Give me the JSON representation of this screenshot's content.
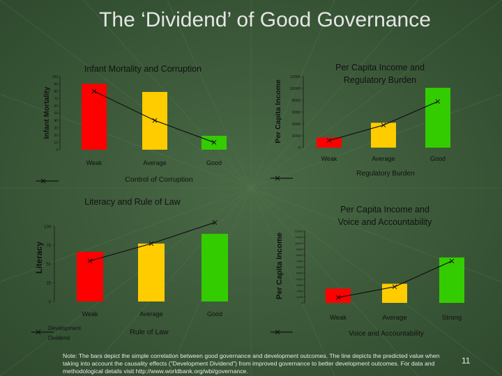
{
  "slide": {
    "title": "The ‘Dividend’ of Good Governance",
    "note": "Note: The bars depict the simple correlation between good governance and development outcomes.  The line depicts the predicted value when taking into account the causality effects (\"Development Dividend\") from improved governance to better development outcomes. For data and methodological details visit http://www.worldbank.org/wbi/governance.",
    "page_number": "11"
  },
  "colors": {
    "background": "#3f5a3c",
    "weak": "#ff0000",
    "average": "#ffcc00",
    "good": "#33cc00",
    "line": "#111111",
    "title": "#e6e6e6"
  },
  "chart_data": [
    {
      "id": "infant",
      "type": "bar",
      "title": "Infant Mortality and Corruption",
      "ylabel": "Infant Mortality",
      "xlabel": "Control of Corruption",
      "ylim": [
        0,
        100
      ],
      "yticks": [
        0,
        10,
        20,
        30,
        40,
        50,
        60,
        70,
        80,
        90,
        100
      ],
      "categories": [
        "Weak",
        "Average",
        "Good"
      ],
      "values": [
        90,
        79,
        19
      ],
      "line": [
        80,
        40,
        10
      ]
    },
    {
      "id": "income-reg",
      "type": "bar",
      "title": "Per Capita Income and Regulatory Burden",
      "ylabel": "Per Capita Income",
      "xlabel": "Regulatory Burden",
      "ylim": [
        0,
        12000
      ],
      "yticks": [
        0,
        2000,
        4000,
        6000,
        8000,
        10000,
        12000
      ],
      "categories": [
        "Weak",
        "Average",
        "Good"
      ],
      "values": [
        1700,
        4200,
        10100
      ],
      "line": [
        1200,
        3800,
        7800
      ]
    },
    {
      "id": "literacy",
      "type": "bar",
      "title": "Literacy and Rule of Law",
      "ylabel": "Literacy",
      "xlabel": "Rule of Law",
      "legend": [
        "Development",
        "Dividend"
      ],
      "ylim": [
        0,
        100
      ],
      "yticks": [
        0,
        25,
        50,
        75,
        100
      ],
      "categories": [
        "Weak",
        "Average",
        "Good"
      ],
      "values": [
        66,
        77,
        90
      ],
      "line": [
        54,
        77,
        105
      ]
    },
    {
      "id": "income-voice",
      "type": "bar",
      "title": "Per Capita Income and Voice and Accountability",
      "ylabel": "Per Capita Income",
      "xlabel": "Voice and Accountability",
      "ylim": [
        0,
        12000
      ],
      "yticks": [
        0,
        1000,
        2000,
        3000,
        4000,
        5000,
        6000,
        7000,
        8000,
        9000,
        10000,
        11000,
        12000
      ],
      "categories": [
        "Weak",
        "Average",
        "Strong"
      ],
      "values": [
        2400,
        3200,
        7600
      ],
      "line": [
        900,
        2700,
        7000
      ]
    }
  ]
}
